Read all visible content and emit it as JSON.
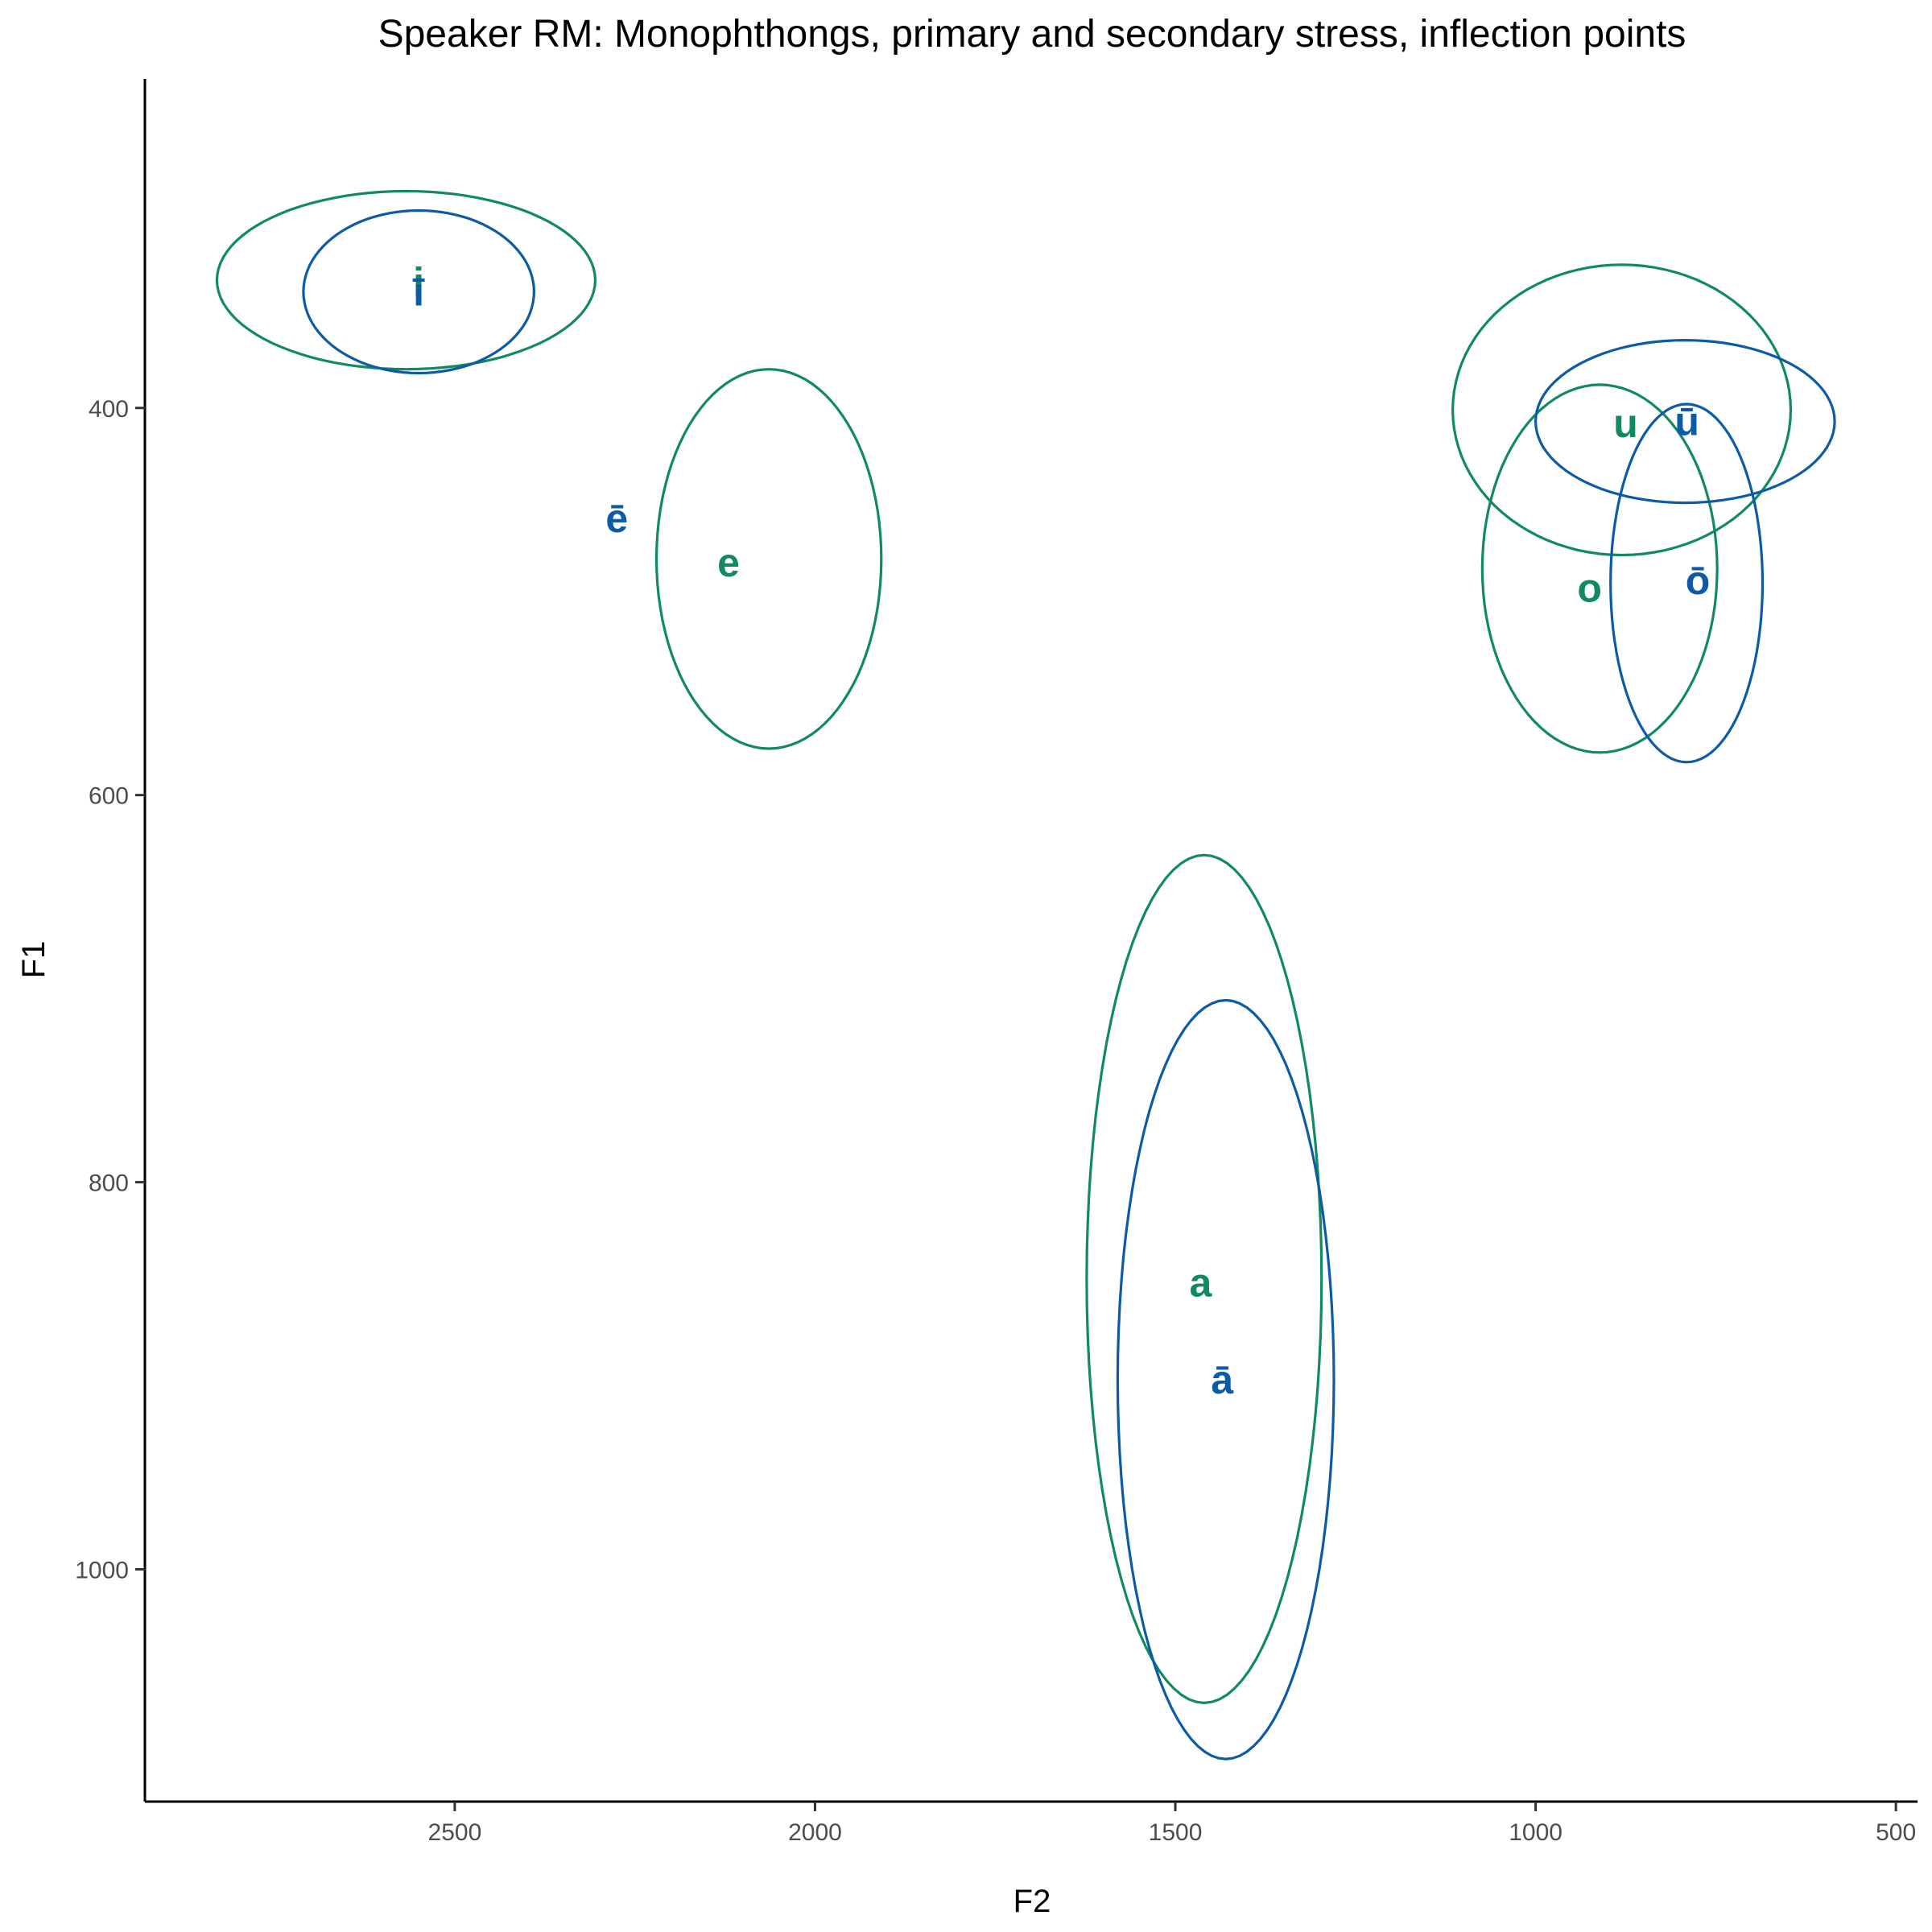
{
  "chart_data": {
    "type": "scatter",
    "title": "Speaker RM: Monophthongs, primary and secondary stress, inflection points",
    "xlabel": "F2",
    "ylabel": "F1",
    "x_axis": {
      "reversed": true,
      "range": [
        2930,
        470
      ],
      "ticks": [
        2500,
        2000,
        1500,
        1000,
        500
      ]
    },
    "y_axis": {
      "reversed": true,
      "range": [
        230,
        1120
      ],
      "ticks": [
        400,
        600,
        800,
        1000
      ]
    },
    "grid": false,
    "series": [
      {
        "color": "#118a62",
        "points": [
          {
            "label": "i",
            "f2": 2550,
            "f1": 335
          },
          {
            "label": "e",
            "f2": 2120,
            "f1": 480
          },
          {
            "label": "u",
            "f2": 875,
            "f1": 408
          },
          {
            "label": "o",
            "f2": 925,
            "f1": 493
          },
          {
            "label": "a",
            "f2": 1465,
            "f1": 852
          }
        ],
        "ellipses": [
          {
            "vowel": "i",
            "f2": 2550,
            "f1": 335,
            "f2_range": [
              2830,
              2305
            ],
            "f1_range": [
              288,
              380
            ]
          },
          {
            "vowel": "e",
            "f2": 2130,
            "f1": 478,
            "f2_range": [
              2220,
              1908
            ],
            "f1_range": [
              380,
              576
            ]
          },
          {
            "vowel": "u",
            "f2": 880,
            "f1": 398,
            "f2_range": [
              1115,
              646
            ],
            "f1_range": [
              326,
              476
            ]
          },
          {
            "vowel": "o",
            "f2": 925,
            "f1": 492,
            "f2_range": [
              1074,
              748
            ],
            "f1_range": [
              388,
              578
            ]
          },
          {
            "vowel": "a",
            "f2": 1465,
            "f1": 850,
            "f2_range": [
              1623,
              1297
            ],
            "f1_range": [
              631,
              1069
            ]
          }
        ]
      },
      {
        "color": "#0d5ba6",
        "points": [
          {
            "label": "ī",
            "f2": 2550,
            "f1": 340
          },
          {
            "label": "ē",
            "f2": 2275,
            "f1": 457
          },
          {
            "label": "ū",
            "f2": 790,
            "f1": 407
          },
          {
            "label": "ō",
            "f2": 775,
            "f1": 489
          },
          {
            "label": "ā",
            "f2": 1435,
            "f1": 902
          }
        ],
        "ellipses": [
          {
            "vowel": "ī",
            "f2": 2550,
            "f1": 340,
            "f2_range": [
              2710,
              2390
            ],
            "f1_range": [
              298,
              382
            ]
          },
          {
            "vowel": "ū",
            "f2": 790,
            "f1": 407,
            "f2_range": [
              1000,
              585
            ],
            "f1_range": [
              365,
              449
            ]
          },
          {
            "vowel": "ō",
            "f2": 790,
            "f1": 481,
            "f2_range": [
              896,
              685
            ],
            "f1_range": [
              398,
              583
            ]
          },
          {
            "vowel": "ā",
            "f2": 1435,
            "f1": 902,
            "f2_range": [
              1580,
              1280
            ],
            "f1_range": [
              706,
              1098
            ]
          }
        ]
      }
    ]
  }
}
